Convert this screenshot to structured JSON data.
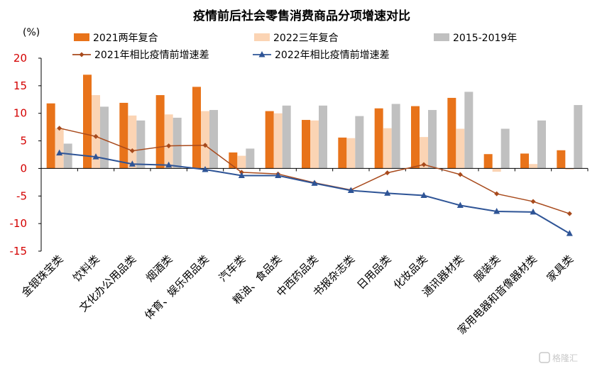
{
  "chart_data": {
    "type": "bar",
    "title": "疫情前后社会零售消费商品分项增速对比",
    "unit": "(%)",
    "ylim": [
      -15,
      20
    ],
    "yticks": [
      20,
      15,
      10,
      5,
      0,
      -5,
      -10,
      -15
    ],
    "grid": false,
    "legend_position": "top",
    "categories": [
      "金银珠宝类",
      "饮料类",
      "文化办公用品类",
      "烟酒类",
      "体育、娱乐用品类",
      "汽车类",
      "粮油、食品类",
      "中西药品类",
      "书报杂志类",
      "日用品类",
      "化妆品类",
      "通讯器材类",
      "服装类",
      "家用电器和音像器材类",
      "家具类"
    ],
    "series": [
      {
        "name": "2021两年复合",
        "kind": "bar",
        "color": "#e8731a",
        "values": [
          11.8,
          17.0,
          11.9,
          13.3,
          14.8,
          2.9,
          10.4,
          8.8,
          5.6,
          10.9,
          11.3,
          12.8,
          2.6,
          2.7,
          3.3
        ]
      },
      {
        "name": "2022三年复合",
        "kind": "bar",
        "color": "#fbd4b4",
        "values": [
          7.3,
          13.3,
          9.6,
          9.8,
          10.4,
          2.3,
          10.0,
          8.7,
          5.5,
          7.3,
          5.7,
          7.2,
          -0.6,
          0.8,
          -0.2
        ]
      },
      {
        "name": "2015-2019年",
        "kind": "bar",
        "color": "#c0c0c0",
        "values": [
          4.5,
          11.2,
          8.7,
          9.2,
          10.6,
          3.6,
          11.4,
          11.4,
          9.5,
          11.7,
          10.6,
          13.9,
          7.2,
          8.7,
          11.5
        ]
      },
      {
        "name": "2021年相比疫情前增速差",
        "kind": "line",
        "marker": "diamond",
        "color": "#a84a1c",
        "values": [
          7.3,
          5.8,
          3.2,
          4.1,
          4.2,
          -0.7,
          -1.0,
          -2.6,
          -3.9,
          -0.8,
          0.7,
          -1.1,
          -4.6,
          -6.0,
          -8.2
        ]
      },
      {
        "name": "2022年相比疫情前增速差",
        "kind": "line",
        "marker": "triangle",
        "color": "#2e5496",
        "values": [
          2.8,
          2.1,
          0.8,
          0.6,
          -0.2,
          -1.3,
          -1.3,
          -2.7,
          -4.0,
          -4.5,
          -4.9,
          -6.7,
          -7.8,
          -7.9,
          -11.8
        ]
      }
    ]
  },
  "watermark": {
    "text": "格隆汇"
  }
}
